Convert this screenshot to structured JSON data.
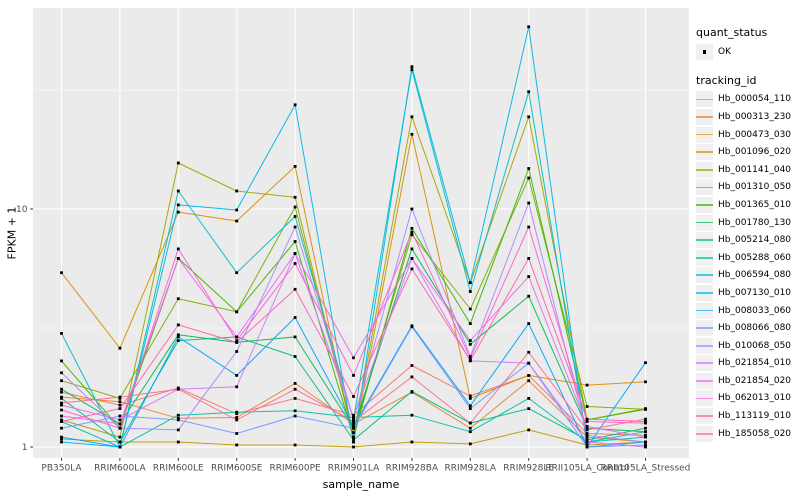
{
  "axes": {
    "x_title": "sample_name",
    "y_title": "FPKM + 1"
  },
  "legend": {
    "quant_status": {
      "title": "quant_status",
      "items": [
        {
          "label": "OK",
          "marker": "black-point"
        }
      ]
    },
    "tracking": {
      "title": "tracking_id"
    }
  },
  "colors": {
    "panel_background": "#EBEBEB",
    "gridline": "#FFFFFF",
    "tick_label": "#4D4D4D",
    "tick_mark": "#333333",
    "point": "#000000"
  },
  "chart_data": {
    "type": "line",
    "title": "",
    "xlabel": "sample_name",
    "ylabel": "FPKM + 1",
    "yscale": "log10",
    "ylim": [
      0.93,
      70
    ],
    "y_major_ticks": [
      1,
      10
    ],
    "y_major_tick_labels": [
      "1",
      "10"
    ],
    "y_minor_ticks": [
      3.162,
      31.62
    ],
    "grid": true,
    "legend_position": "right",
    "point_marker": "small black square (quant_status OK)",
    "categories": [
      "PB350LA",
      "RRIM600LA",
      "RRIM600LE",
      "RRIM600SE",
      "RRIM600PE",
      "RRIM901LA",
      "RRIM928BA",
      "RRIM928LA",
      "RRIM928LE",
      "RRII105LA_Control",
      "RRII105LA_Stressed"
    ],
    "series": [
      {
        "name": "Hb_000054_110",
        "color": "#F8766D",
        "values": [
          1.7,
          1.5,
          1.77,
          1.38,
          1.6,
          1.36,
          2.2,
          1.64,
          2.0,
          1.14,
          1.12
        ]
      },
      {
        "name": "Hb_000313_230",
        "color": "#EA8331",
        "values": [
          1.62,
          1.55,
          1.32,
          1.33,
          1.85,
          1.25,
          1.7,
          1.2,
          1.9,
          1.1,
          1.05
        ]
      },
      {
        "name": "Hb_000473_030",
        "color": "#D89000",
        "values": [
          5.4,
          2.6,
          9.7,
          8.9,
          15.1,
          1.05,
          20.6,
          1.6,
          2.0,
          1.82,
          1.88
        ]
      },
      {
        "name": "Hb_001096_020",
        "color": "#C09B00",
        "values": [
          1.08,
          1.05,
          1.05,
          1.02,
          1.02,
          1.0,
          1.05,
          1.03,
          1.18,
          1.02,
          1.05
        ]
      },
      {
        "name": "Hb_001141_040",
        "color": "#A3A500",
        "values": [
          1.3,
          1.1,
          15.6,
          11.9,
          11.2,
          1.1,
          24.4,
          4.9,
          24.4,
          1.3,
          1.45
        ]
      },
      {
        "name": "Hb_001310_050",
        "color": "#7CAE00",
        "values": [
          1.9,
          1.6,
          4.2,
          3.7,
          10.2,
          1.15,
          7.8,
          3.8,
          13.5,
          1.48,
          1.44
        ]
      },
      {
        "name": "Hb_001365_010",
        "color": "#39B600",
        "values": [
          2.3,
          1.2,
          6.2,
          3.7,
          7.3,
          1.1,
          8.3,
          3.3,
          14.8,
          1.3,
          1.44
        ]
      },
      {
        "name": "Hb_001780_130",
        "color": "#00BB4E",
        "values": [
          1.75,
          1.25,
          2.96,
          2.75,
          2.9,
          1.2,
          6.8,
          2.7,
          4.3,
          1.2,
          1.16
        ]
      },
      {
        "name": "Hb_005214_080",
        "color": "#00BF7D",
        "values": [
          1.6,
          1.05,
          2.8,
          2.9,
          2.4,
          1.07,
          1.71,
          1.26,
          1.45,
          1.07,
          1.2
        ]
      },
      {
        "name": "Hb_005288_060",
        "color": "#00C1A7",
        "values": [
          1.28,
          1.0,
          1.36,
          1.4,
          1.42,
          1.33,
          1.36,
          1.16,
          1.6,
          1.05,
          1.16
        ]
      },
      {
        "name": "Hb_006594_080",
        "color": "#00BFC4",
        "values": [
          3.0,
          1.0,
          11.9,
          5.4,
          9.3,
          1.3,
          38.5,
          4.5,
          31.1,
          1.05,
          1.1
        ]
      },
      {
        "name": "Hb_007130_010",
        "color": "#00B8E7",
        "values": [
          1.05,
          1.0,
          10.4,
          9.9,
          27.4,
          1.05,
          39.6,
          4.9,
          58.3,
          1.0,
          1.05
        ]
      },
      {
        "name": "Hb_008033_060",
        "color": "#00A5FF",
        "values": [
          1.1,
          1.0,
          2.9,
          2.0,
          3.5,
          1.22,
          3.23,
          1.49,
          3.3,
          1.0,
          2.26
        ]
      },
      {
        "name": "Hb_008066_080",
        "color": "#7997FF",
        "values": [
          1.2,
          1.35,
          1.3,
          1.14,
          1.35,
          1.2,
          3.2,
          1.45,
          2.25,
          1.0,
          1.02
        ]
      },
      {
        "name": "Hb_010068_050",
        "color": "#AC88FF",
        "values": [
          2.05,
          1.2,
          1.18,
          2.52,
          8.4,
          1.3,
          10.0,
          2.4,
          10.6,
          1.12,
          1.05
        ]
      },
      {
        "name": "Hb_021854_010",
        "color": "#D277FF",
        "values": [
          1.5,
          1.3,
          1.75,
          1.79,
          6.5,
          1.33,
          6.2,
          2.3,
          2.25,
          1.05,
          1.0
        ]
      },
      {
        "name": "Hb_021854_020",
        "color": "#EC69EF",
        "values": [
          1.35,
          1.25,
          6.2,
          2.9,
          6.5,
          2.37,
          6.2,
          2.8,
          5.2,
          1.22,
          1.1
        ]
      },
      {
        "name": "Hb_062013_010",
        "color": "#FD61D3",
        "values": [
          1.43,
          1.2,
          6.8,
          2.8,
          5.9,
          2.0,
          8.0,
          2.36,
          8.4,
          1.28,
          1.26
        ]
      },
      {
        "name": "Hb_113119_010",
        "color": "#FF62AE",
        "values": [
          1.28,
          1.45,
          3.26,
          2.75,
          4.6,
          1.63,
          5.6,
          2.31,
          6.2,
          1.31,
          1.28
        ]
      },
      {
        "name": "Hb_185058_020",
        "color": "#FF6C91",
        "values": [
          1.53,
          1.62,
          1.75,
          1.3,
          1.75,
          1.28,
          1.97,
          1.26,
          2.5,
          1.18,
          1.31
        ]
      }
    ]
  }
}
